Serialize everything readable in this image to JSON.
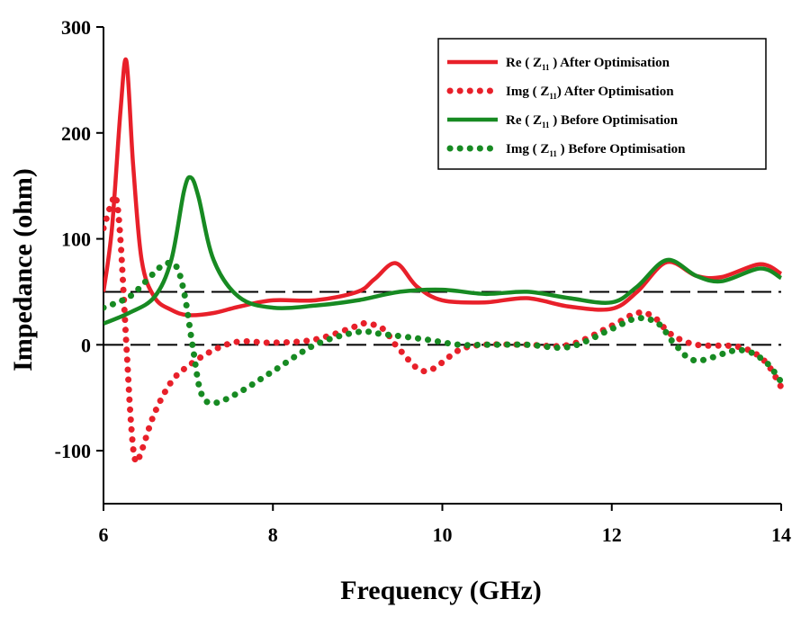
{
  "chart_data": {
    "type": "line",
    "xlabel": "Frequency (GHz)",
    "ylabel": "Impedance (ohm)",
    "xlim": [
      6,
      14
    ],
    "ylim": [
      -150,
      300
    ],
    "xticks": [
      6,
      8,
      10,
      12,
      14
    ],
    "yticks": [
      300,
      200,
      100,
      0,
      -100
    ],
    "reference_lines": [
      50,
      0
    ],
    "legend_position": "top-right",
    "series": [
      {
        "name": "Re ( Z11 ) After Optimisation",
        "legend": {
          "pre": "Re ( Z",
          "sub": "11",
          "post": " ) After Optimisation"
        },
        "color": "#e8202a",
        "style": "solid",
        "x": [
          6.0,
          6.1,
          6.2,
          6.27,
          6.35,
          6.45,
          6.6,
          6.8,
          7.0,
          7.3,
          7.6,
          8.0,
          8.5,
          9.0,
          9.2,
          9.45,
          9.7,
          10.0,
          10.5,
          11.0,
          11.5,
          12.0,
          12.3,
          12.65,
          13.0,
          13.3,
          13.75,
          14.0
        ],
        "y": [
          50,
          110,
          220,
          268,
          170,
          80,
          45,
          33,
          28,
          30,
          36,
          42,
          42,
          50,
          62,
          77,
          55,
          42,
          40,
          44,
          36,
          34,
          50,
          78,
          65,
          64,
          76,
          67
        ]
      },
      {
        "name": "Img ( Z11 ) After Optimisation",
        "legend": {
          "pre": "Img  ( Z",
          "sub": "11",
          "post": ") After Optimisation"
        },
        "color": "#e8202a",
        "style": "dotted",
        "x": [
          6.0,
          6.1,
          6.15,
          6.2,
          6.27,
          6.33,
          6.38,
          6.45,
          6.6,
          6.8,
          7.0,
          7.3,
          7.6,
          8.0,
          8.5,
          9.0,
          9.1,
          9.3,
          9.5,
          9.8,
          10.2,
          10.5,
          11.0,
          11.5,
          12.0,
          12.3,
          12.5,
          12.7,
          13.0,
          13.5,
          13.8,
          14.0
        ],
        "y": [
          110,
          135,
          138,
          100,
          0,
          -80,
          -110,
          -100,
          -65,
          -35,
          -20,
          -5,
          3,
          2,
          5,
          18,
          20,
          15,
          -5,
          -25,
          -5,
          0,
          0,
          0,
          18,
          30,
          26,
          10,
          0,
          -2,
          -15,
          -40
        ]
      },
      {
        "name": "Re ( Z11 ) Before Optimisation",
        "legend": {
          "pre": "Re ( Z",
          "sub": "11",
          "post": " ) Before Optimisation"
        },
        "color": "#178a22",
        "style": "solid",
        "x": [
          6.0,
          6.3,
          6.6,
          6.8,
          6.95,
          7.03,
          7.12,
          7.3,
          7.6,
          8.0,
          8.5,
          9.0,
          9.5,
          10.0,
          10.5,
          11.0,
          11.5,
          12.0,
          12.3,
          12.65,
          13.0,
          13.3,
          13.75,
          14.0
        ],
        "y": [
          20,
          30,
          45,
          80,
          145,
          158,
          140,
          80,
          45,
          35,
          37,
          42,
          50,
          52,
          48,
          50,
          44,
          40,
          55,
          80,
          65,
          60,
          72,
          63
        ]
      },
      {
        "name": "Img ( Z11 ) Before Optimisation",
        "legend": {
          "pre": "Img ( Z",
          "sub": "11",
          "post": " ) Before Optimisation"
        },
        "color": "#178a22",
        "style": "dotted",
        "x": [
          6.0,
          6.3,
          6.5,
          6.7,
          6.85,
          6.95,
          7.05,
          7.15,
          7.3,
          7.6,
          8.0,
          8.5,
          9.0,
          9.3,
          9.8,
          10.2,
          10.5,
          11.0,
          11.5,
          12.0,
          12.3,
          12.55,
          12.75,
          13.0,
          13.5,
          13.8,
          14.0
        ],
        "y": [
          35,
          45,
          60,
          75,
          75,
          50,
          0,
          -45,
          -55,
          -45,
          -25,
          0,
          12,
          10,
          5,
          0,
          0,
          0,
          -2,
          15,
          25,
          20,
          0,
          -15,
          -5,
          -15,
          -35
        ]
      }
    ]
  }
}
